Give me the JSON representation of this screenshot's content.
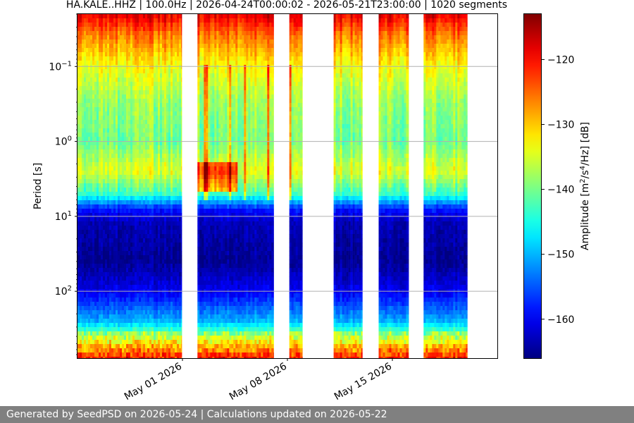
{
  "title": "HA.KALE..HHZ | 100.0Hz | 2026-04-24T00:00:02 - 2026-05-21T23:00:00 | 1020 segments",
  "footer": "Generated by SeedPSD on 2026-05-24 | Calculations updated on 2026-05-22",
  "chart_data": {
    "type": "heatmap",
    "title": "HA.KALE..HHZ | 100.0Hz | 2026-04-24T00:00:02 - 2026-05-21T23:00:00 | 1020 segments",
    "ylabel": "Period [s]",
    "yscale": "log",
    "ylim": [
      780,
      0.02
    ],
    "y_ticks": [
      {
        "value": 0.1,
        "base": "10",
        "exp": "−1"
      },
      {
        "value": 1,
        "base": "10",
        "exp": "0"
      },
      {
        "value": 10,
        "base": "10",
        "exp": "1"
      },
      {
        "value": 100,
        "base": "10",
        "exp": "2"
      }
    ],
    "xlim": [
      "2026-04-24",
      "2026-05-22"
    ],
    "x_ticks": [
      {
        "date": "2026-05-01",
        "label": "May 01 2026"
      },
      {
        "date": "2026-05-08",
        "label": "May 08 2026"
      },
      {
        "date": "2026-05-15",
        "label": "May 15 2026"
      }
    ],
    "grid": "horizontal",
    "data_segments": [
      {
        "start": "2026-04-24T00:00",
        "end": "2026-04-30T23:00"
      },
      {
        "start": "2026-05-02T00:00",
        "end": "2026-05-07T02:00"
      },
      {
        "start": "2026-05-08T03:00",
        "end": "2026-05-09T00:00"
      },
      {
        "start": "2026-05-11T02:00",
        "end": "2026-05-13T00:00"
      },
      {
        "start": "2026-05-14T02:00",
        "end": "2026-05-16T02:00"
      },
      {
        "start": "2026-05-17T02:00",
        "end": "2026-05-20T00:00"
      }
    ],
    "colorbar": {
      "label_main": "Amplitude [m",
      "label_unit": "/s",
      "label_hz": "/Hz] [dB]",
      "label_exp1": "2",
      "label_exp2": "4",
      "range": [
        -166,
        -113
      ],
      "ticks": [
        {
          "value": -120,
          "label": "−120"
        },
        {
          "value": -130,
          "label": "−130"
        },
        {
          "value": -140,
          "label": "−140"
        },
        {
          "value": -150,
          "label": "−150"
        },
        {
          "value": -160,
          "label": "−160"
        }
      ],
      "colormap": "jet"
    },
    "psd_profile": [
      {
        "period": 0.02,
        "db": -118
      },
      {
        "period": 0.04,
        "db": -126
      },
      {
        "period": 0.1,
        "db": -133
      },
      {
        "period": 0.3,
        "db": -138
      },
      {
        "period": 1,
        "db": -140
      },
      {
        "period": 2.5,
        "db": -134
      },
      {
        "period": 5,
        "db": -143
      },
      {
        "period": 8,
        "db": -158
      },
      {
        "period": 12,
        "db": -163
      },
      {
        "period": 40,
        "db": -165
      },
      {
        "period": 100,
        "db": -160
      },
      {
        "period": 250,
        "db": -150
      },
      {
        "period": 400,
        "db": -138
      },
      {
        "period": 780,
        "db": -122
      }
    ]
  }
}
